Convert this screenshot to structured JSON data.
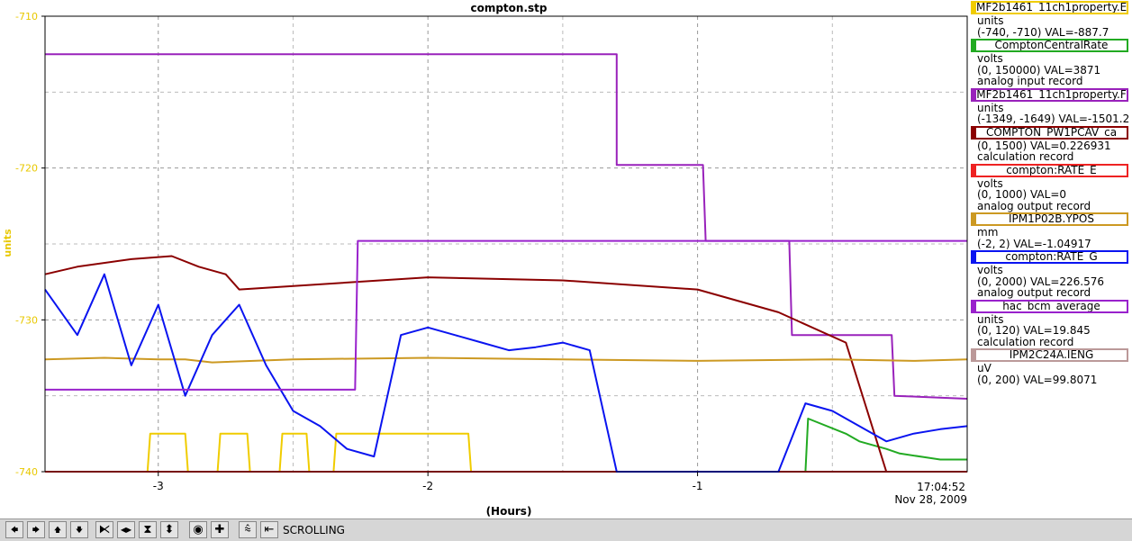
{
  "colors": {
    "yellow_axis": "#e8c800",
    "yellow": "#f0cc00",
    "green": "#22aa22",
    "purple": "#9922bb",
    "darkred": "#8b0000",
    "red": "#ee2222",
    "gold": "#cc9922",
    "blue": "#0a14f0",
    "violet": "#9922cc",
    "rosy": "#bb9999"
  },
  "chart_data": {
    "type": "line",
    "title": "compton.stp",
    "xlabel": "(Hours)",
    "ylabel": "units",
    "x_ticks": [
      "-3",
      "-2",
      "-1"
    ],
    "y_ticks": [
      "-710",
      "-720",
      "-730",
      "-740"
    ],
    "xlim": [
      -3.42,
      0
    ],
    "ylim": [
      -740,
      -710
    ],
    "grid": true,
    "time_label": "17:04:52",
    "date_label": "Nov 28, 2009",
    "series": [
      {
        "name": "MF2b1461_11ch1property.E",
        "color": "yellow",
        "range": [
          -740,
          -710
        ],
        "value": -887.7,
        "x": [
          -3.42,
          -3.04,
          -3.03,
          -2.9,
          -2.89,
          -2.78,
          -2.77,
          -2.67,
          -2.66,
          -2.55,
          -2.54,
          -2.45,
          -2.44,
          -2.35,
          -2.34,
          -1.85,
          -1.84,
          0
        ],
        "y": [
          -740,
          -740,
          -737.5,
          -737.5,
          -740,
          -740,
          -737.5,
          -737.5,
          -740,
          -740,
          -737.5,
          -737.5,
          -740,
          -740,
          -737.5,
          -737.5,
          -740,
          -740
        ]
      },
      {
        "name": "ComptonCentralRate",
        "color": "green",
        "range": [
          0,
          150000
        ],
        "value": 3871,
        "x": [
          -3.42,
          -0.6,
          -0.59,
          -0.45,
          -0.4,
          -0.3,
          -0.25,
          -0.1,
          0
        ],
        "y": [
          -740,
          -740,
          -736.5,
          -737.5,
          -738,
          -738.5,
          -738.8,
          -739.2,
          -739.2
        ]
      },
      {
        "name": "MF2b1461_11ch1property.F",
        "color": "purple",
        "range": [
          -1349,
          -1649
        ],
        "value": -1501.2,
        "x": [
          -3.42,
          -1.3,
          -1.3,
          -1.02,
          -1.0,
          -0.98,
          -0.97,
          -0.66,
          -0.65,
          -0.28,
          -0.27,
          0
        ],
        "y": [
          -712.5,
          -712.5,
          -719.8,
          -719.8,
          -719.8,
          -719.8,
          -724.8,
          -724.8,
          -731,
          -731,
          -735,
          -735.2
        ]
      },
      {
        "name": "COMPTON_PW1PCAV_ca",
        "color": "darkred",
        "range": [
          0,
          1500
        ],
        "value": 0.226931,
        "x": [
          -3.42,
          -3.3,
          -3.1,
          -2.95,
          -2.85,
          -2.75,
          -2.7,
          -2.0,
          -1.5,
          -1.0,
          -0.7,
          -0.45,
          -0.3,
          -0.25,
          0
        ],
        "y": [
          -727,
          -726.5,
          -726,
          -725.8,
          -726.5,
          -727,
          -728,
          -727.2,
          -727.4,
          -728,
          -729.5,
          -731.5,
          -740,
          -740,
          -740
        ]
      },
      {
        "name": "compton:RATE_E",
        "color": "red",
        "range": [
          0,
          1000
        ],
        "value": 0,
        "x": [
          -3.42,
          0
        ],
        "y": [
          -740,
          -740
        ]
      },
      {
        "name": "IPM1P02B.YPOS",
        "color": "gold",
        "range": [
          -2,
          2
        ],
        "value": -1.04917,
        "x": [
          -3.42,
          -3.2,
          -3.0,
          -2.9,
          -2.8,
          -2.5,
          -2.0,
          -1.5,
          -1.0,
          -0.5,
          -0.2,
          0
        ],
        "y": [
          -732.6,
          -732.5,
          -732.6,
          -732.6,
          -732.8,
          -732.6,
          -732.5,
          -732.6,
          -732.7,
          -732.6,
          -732.7,
          -732.6
        ]
      },
      {
        "name": "compton:RATE_G",
        "color": "blue",
        "range": [
          0,
          2000
        ],
        "value": 226.576,
        "x": [
          -3.42,
          -3.3,
          -3.2,
          -3.1,
          -3.0,
          -2.9,
          -2.8,
          -2.7,
          -2.6,
          -2.5,
          -2.4,
          -2.3,
          -2.2,
          -2.1,
          -2.0,
          -1.9,
          -1.8,
          -1.7,
          -1.6,
          -1.5,
          -1.4,
          -1.3,
          -1.2,
          -1.0,
          -0.7,
          -0.6,
          -0.5,
          -0.4,
          -0.3,
          -0.2,
          -0.1,
          0
        ],
        "y": [
          -728,
          -731,
          -727,
          -733,
          -729,
          -735,
          -731,
          -729,
          -733,
          -736,
          -737,
          -738.5,
          -739,
          -731,
          -730.5,
          -731,
          -731.5,
          -732,
          -731.8,
          -731.5,
          -732,
          -740,
          -740,
          -740,
          -740,
          -735.5,
          -736,
          -737,
          -738,
          -737.5,
          -737.2,
          -737
        ]
      },
      {
        "name": "hac_bcm_average",
        "color": "violet",
        "range": [
          0,
          120
        ],
        "value": 19.845,
        "x": [
          -3.42,
          -2.27,
          -2.26,
          0
        ],
        "y": [
          -734.6,
          -734.6,
          -724.8,
          -724.8
        ]
      },
      {
        "name": "IPM2C24A.IENG",
        "color": "rosy",
        "range": [
          0,
          200
        ],
        "value": 99.8071,
        "x": [],
        "y": []
      }
    ]
  },
  "legend": [
    {
      "name": "MF2b1461_11ch1property.E",
      "color": "yellow",
      "lines": [
        "units",
        "(-740, -710) VAL=-887.7"
      ]
    },
    {
      "name": "ComptonCentralRate",
      "color": "green",
      "lines": [
        "volts",
        "(0, 150000) VAL=3871",
        "analog input record"
      ]
    },
    {
      "name": "MF2b1461_11ch1property.F",
      "color": "purple",
      "lines": [
        "units",
        "(-1349, -1649) VAL=-1501.2"
      ]
    },
    {
      "name": "COMPTON_PW1PCAV_ca",
      "color": "darkred",
      "lines": [
        "(0, 1500) VAL=0.226931",
        "calculation record"
      ]
    },
    {
      "name": "compton:RATE_E",
      "color": "red",
      "lines": [
        "volts",
        "(0, 1000) VAL=0",
        "analog output record"
      ]
    },
    {
      "name": "IPM1P02B.YPOS",
      "color": "gold",
      "lines": [
        "mm",
        "(-2, 2) VAL=-1.04917"
      ]
    },
    {
      "name": "compton:RATE_G",
      "color": "blue",
      "lines": [
        "volts",
        "(0, 2000) VAL=226.576",
        "analog output record"
      ]
    },
    {
      "name": "hac_bcm_average",
      "color": "violet",
      "lines": [
        "units",
        "(0, 120) VAL=19.845",
        "calculation record"
      ]
    },
    {
      "name": "IPM2C24A.IENG",
      "color": "rosy",
      "lines": [
        "uV",
        "(0, 200) VAL=99.8071"
      ]
    }
  ],
  "toolbar": {
    "status": "SCROLLING",
    "buttons": [
      {
        "name": "scroll-left-icon",
        "glyph": "🡄"
      },
      {
        "name": "scroll-right-icon",
        "glyph": "🡆"
      },
      {
        "name": "scroll-up-icon",
        "glyph": "🡅"
      },
      {
        "name": "scroll-down-icon",
        "glyph": "🡇"
      },
      {
        "name": "compress-horizontal-icon",
        "glyph": "⧔"
      },
      {
        "name": "expand-horizontal-icon",
        "glyph": "◀▶"
      },
      {
        "name": "compress-vertical-icon",
        "glyph": "⧗"
      },
      {
        "name": "expand-vertical-icon",
        "glyph": "⬍"
      },
      {
        "name": "zoom-reset-icon",
        "glyph": "◉"
      },
      {
        "name": "zoom-in-icon",
        "glyph": "✚"
      },
      {
        "name": "stack-icon",
        "glyph": "⩯"
      },
      {
        "name": "toggle-scroll-icon",
        "glyph": "⇤"
      }
    ]
  }
}
